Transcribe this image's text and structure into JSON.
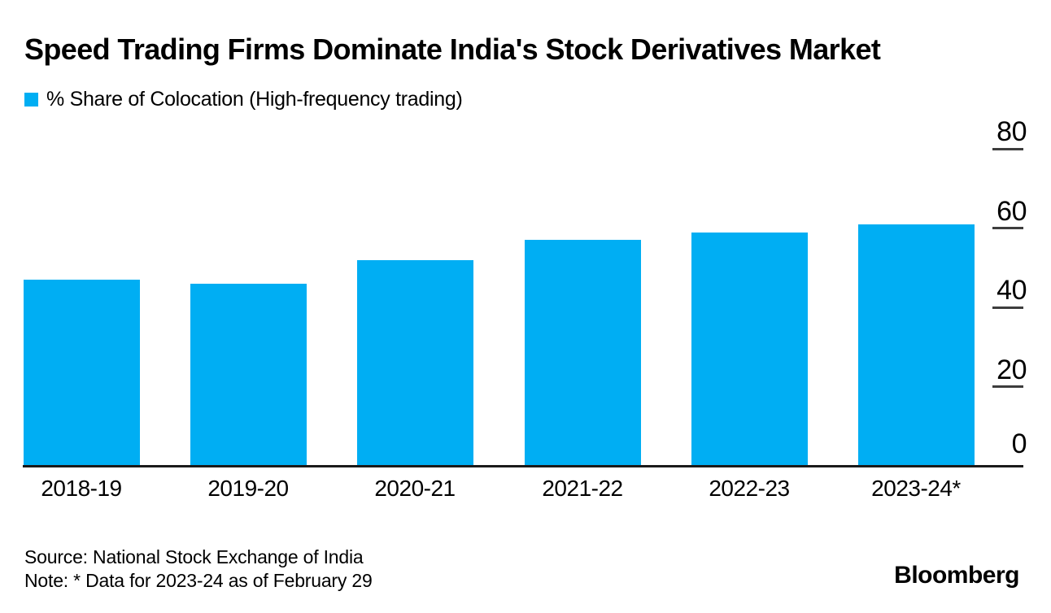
{
  "header": {
    "title": "Speed Trading Firms Dominate India's Stock Derivatives Market",
    "legend": {
      "label": "% Share of Colocation (High-frequency trading)"
    }
  },
  "chart_data": {
    "type": "bar",
    "title": "Speed Trading Firms Dominate India's Stock Derivatives Market",
    "legend": [
      "% Share of Colocation (High-frequency trading)"
    ],
    "categories": [
      "2018-19",
      "2019-20",
      "2020-21",
      "2021-22",
      "2022-23",
      "2023-24*"
    ],
    "values": [
      47,
      46,
      52,
      57,
      59,
      61
    ],
    "xlabel": "",
    "ylabel": "",
    "ylim": [
      0,
      80
    ],
    "yticks": [
      0,
      20,
      40,
      60,
      80
    ],
    "ytick_side": "right",
    "grid": false,
    "bar_color": "#00AEF3",
    "axis_color": "#1a1a1a",
    "tick_dash_color": "#3d3d3d"
  },
  "footer": {
    "source": "Source: National Stock Exchange of India",
    "note": "Note: * Data for 2023-24 as of February 29",
    "brand": "Bloomberg"
  }
}
